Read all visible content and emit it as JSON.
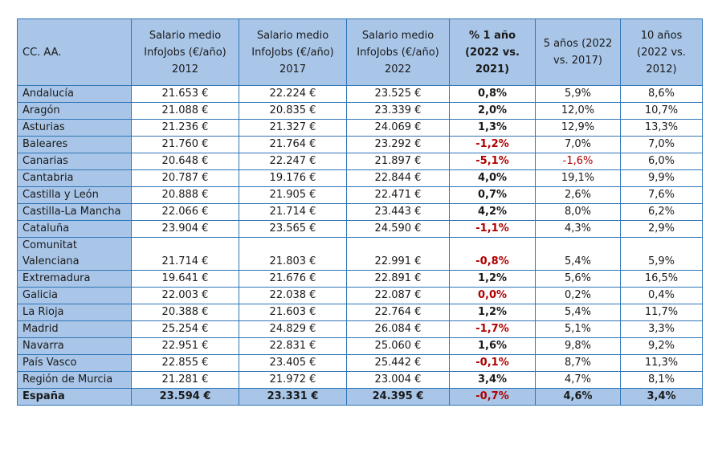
{
  "table": {
    "headers": [
      "CC. AA.",
      "Salario medio InfoJobs (€/año) 2012",
      "Salario medio InfoJobs (€/año) 2017",
      "Salario medio InfoJobs (€/año) 2022",
      "% 1 año (2022 vs. 2021)",
      "5 años (2022 vs. 2017)",
      "10 años (2022 vs. 2012)"
    ],
    "rows": [
      {
        "region": "Andalucía",
        "s2012": "21.653 €",
        "s2017": "22.224 €",
        "s2022": "23.525 €",
        "y1": "0,8%",
        "y5": "5,9%",
        "y10": "8,6%"
      },
      {
        "region": "Aragón",
        "s2012": "21.088 €",
        "s2017": "20.835 €",
        "s2022": "23.339 €",
        "y1": "2,0%",
        "y5": "12,0%",
        "y10": "10,7%"
      },
      {
        "region": "Asturias",
        "s2012": "21.236 €",
        "s2017": "21.327 €",
        "s2022": "24.069 €",
        "y1": "1,3%",
        "y5": "12,9%",
        "y10": "13,3%"
      },
      {
        "region": "Baleares",
        "s2012": "21.760 €",
        "s2017": "21.764 €",
        "s2022": "23.292 €",
        "y1": "-1,2%",
        "y5": "7,0%",
        "y10": "7,0%"
      },
      {
        "region": "Canarias",
        "s2012": "20.648 €",
        "s2017": "22.247 €",
        "s2022": "21.897 €",
        "y1": "-5,1%",
        "y5": "-1,6%",
        "y10": "6,0%"
      },
      {
        "region": "Cantabria",
        "s2012": "20.787 €",
        "s2017": "19.176 €",
        "s2022": "22.844 €",
        "y1": "4,0%",
        "y5": "19,1%",
        "y10": "9,9%"
      },
      {
        "region": "Castilla y León",
        "s2012": "20.888 €",
        "s2017": "21.905 €",
        "s2022": "22.471 €",
        "y1": "0,7%",
        "y5": "2,6%",
        "y10": "7,6%"
      },
      {
        "region": "Castilla-La Mancha",
        "s2012": "22.066 €",
        "s2017": "21.714 €",
        "s2022": "23.443 €",
        "y1": "4,2%",
        "y5": "8,0%",
        "y10": "6,2%"
      },
      {
        "region": "Cataluña",
        "s2012": "23.904 €",
        "s2017": "23.565 €",
        "s2022": "24.590 €",
        "y1": "-1,1%",
        "y5": "4,3%",
        "y10": "2,9%"
      },
      {
        "region": "Comunitat Valenciana",
        "s2012": "21.714 €",
        "s2017": "21.803 €",
        "s2022": "22.991 €",
        "y1": "-0,8%",
        "y5": "5,4%",
        "y10": "5,9%"
      },
      {
        "region": "Extremadura",
        "s2012": "19.641 €",
        "s2017": "21.676 €",
        "s2022": "22.891 €",
        "y1": "1,2%",
        "y5": "5,6%",
        "y10": "16,5%"
      },
      {
        "region": "Galicia",
        "s2012": "22.003 €",
        "s2017": "22.038 €",
        "s2022": "22.087 €",
        "y1": "0,0%",
        "y5": "0,2%",
        "y10": "0,4%"
      },
      {
        "region": "La Rioja",
        "s2012": "20.388 €",
        "s2017": "21.603 €",
        "s2022": "22.764 €",
        "y1": "1,2%",
        "y5": "5,4%",
        "y10": "11,7%"
      },
      {
        "region": "Madrid",
        "s2012": "25.254 €",
        "s2017": "24.829 €",
        "s2022": "26.084 €",
        "y1": "-1,7%",
        "y5": "5,1%",
        "y10": "3,3%"
      },
      {
        "region": "Navarra",
        "s2012": "22.951 €",
        "s2017": "22.831 €",
        "s2022": "25.060 €",
        "y1": "1,6%",
        "y5": "9,8%",
        "y10": "9,2%"
      },
      {
        "region": "País Vasco",
        "s2012": "22.855 €",
        "s2017": "23.405 €",
        "s2022": "25.442 €",
        "y1": "-0,1%",
        "y5": "8,7%",
        "y10": "11,3%"
      },
      {
        "region": "Región de Murcia",
        "s2012": "21.281 €",
        "s2017": "21.972 €",
        "s2022": "23.004 €",
        "y1": "3,4%",
        "y5": "4,7%",
        "y10": "8,1%"
      }
    ],
    "total": {
      "region": "España",
      "s2012": "23.594 €",
      "s2017": "23.331 €",
      "s2022": "24.395 €",
      "y1": "-0,7%",
      "y5": "4,6%",
      "y10": "3,4%"
    }
  },
  "colors": {
    "header_fill": "#a9c6e8",
    "border": "#2e75b6",
    "negative_highlight": "#b00000"
  }
}
